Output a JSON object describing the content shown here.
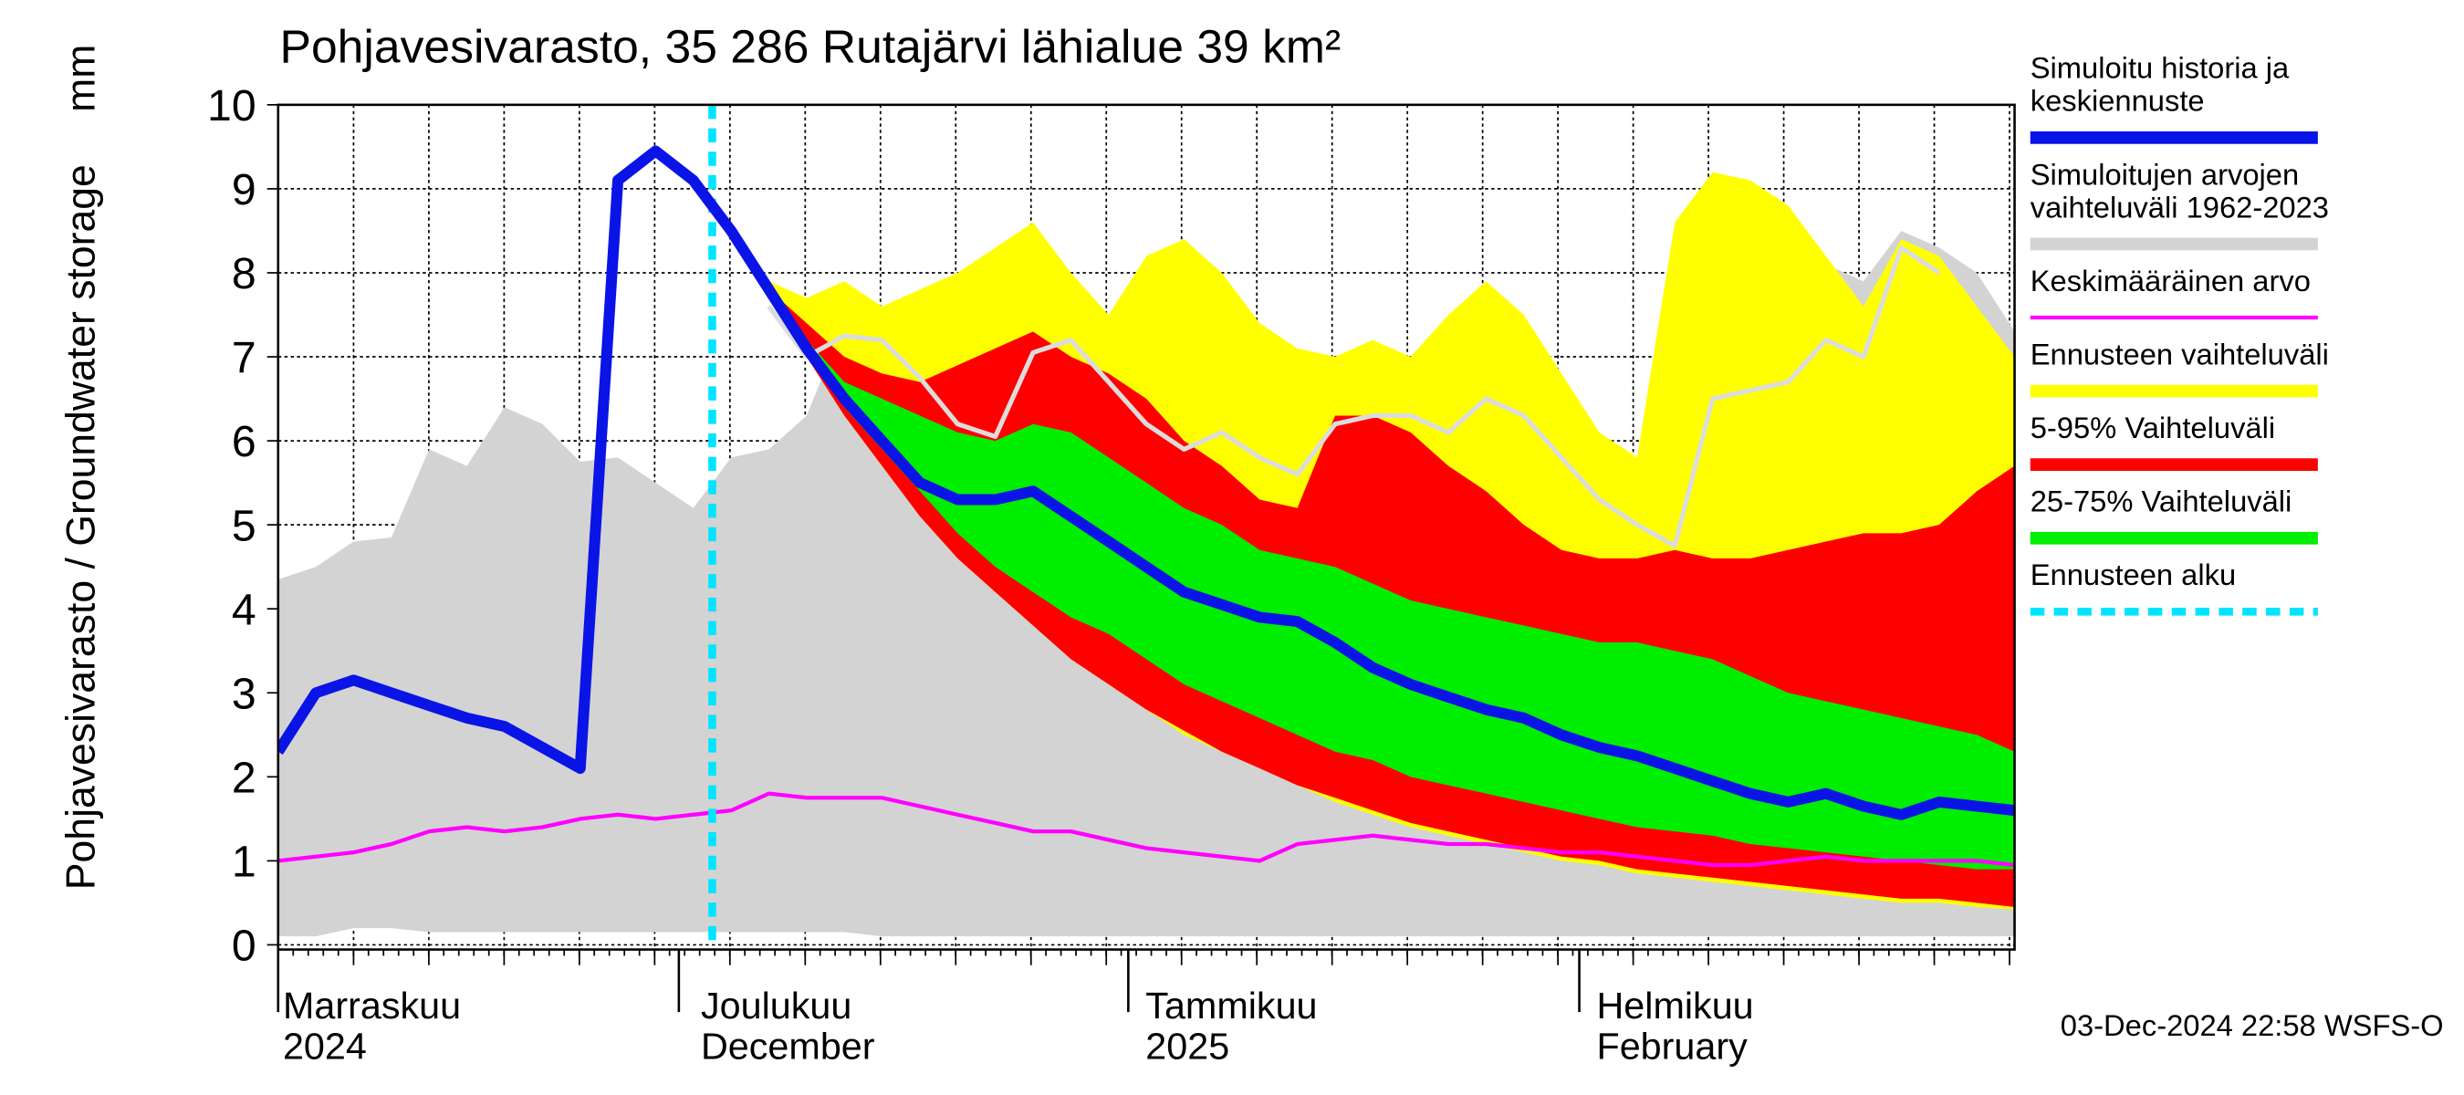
{
  "chart_data": {
    "type": "band-line",
    "title": "Pohjavesivarasto, 35 286 Rutajärvi lähialue 39 km²",
    "y_label": "Pohjavesivarasto / Groundwater storage",
    "y_unit": "mm",
    "timestamp": "03-Dec-2024 22:58 WSFS-O",
    "x_labels": [
      [
        "Marraskuu",
        "2024"
      ],
      [
        "Joulukuu",
        "December"
      ],
      [
        "Tammikuu",
        "2025"
      ],
      [
        "Helmikuu",
        "February"
      ]
    ],
    "ylim": [
      0,
      10
    ],
    "yticks": [
      0,
      1,
      2,
      3,
      4,
      5,
      6,
      7,
      8,
      9,
      10
    ],
    "grid": true,
    "forecast_start": {
      "name": "Ennusteen alku",
      "color": "#00e5ff"
    },
    "series": [
      {
        "name": [
          "Simuloitu historia ja",
          "keskiennuste"
        ],
        "color": "#0a14e6",
        "values": [
          2.3,
          3.0,
          3.15,
          3.0,
          2.85,
          2.7,
          2.6,
          2.35,
          2.1,
          9.1,
          9.45,
          9.1,
          8.5,
          7.8,
          7.1,
          6.5,
          6.0,
          5.5,
          5.3,
          5.3,
          5.4,
          5.1,
          4.8,
          4.5,
          4.2,
          4.05,
          3.9,
          3.85,
          3.6,
          3.3,
          3.1,
          2.95,
          2.8,
          2.7,
          2.5,
          2.35,
          2.25,
          2.1,
          1.95,
          1.8,
          1.7,
          1.8,
          1.65,
          1.55,
          1.7,
          1.65,
          1.6
        ]
      },
      {
        "name": [
          "Simuloitujen arvojen",
          "vaihteluväli 1962-2023"
        ],
        "color": "#d3d3d3",
        "upper": [
          4.35,
          4.5,
          4.8,
          4.85,
          5.9,
          5.7,
          6.4,
          6.2,
          5.75,
          5.8,
          5.5,
          5.2,
          5.8,
          5.9,
          6.3,
          7.4,
          7.4,
          7.6,
          7.9,
          8.2,
          8.5,
          7.9,
          7.4,
          8.1,
          8.3,
          7.9,
          7.3,
          7.0,
          6.9,
          7.1,
          6.9,
          7.4,
          7.8,
          7.4,
          6.7,
          6.0,
          5.7,
          8.5,
          9.1,
          9.0,
          8.7,
          8.1,
          7.9,
          8.5,
          8.3,
          8.0,
          7.3
        ],
        "lower": [
          0.1,
          0.1,
          0.2,
          0.2,
          0.15,
          0.15,
          0.15,
          0.15,
          0.15,
          0.15,
          0.15,
          0.15,
          0.15,
          0.15,
          0.15,
          0.15,
          0.1,
          0.1,
          0.1,
          0.1,
          0.1,
          0.1,
          0.1,
          0.1,
          0.1,
          0.1,
          0.1,
          0.1,
          0.1,
          0.1,
          0.1,
          0.1,
          0.1,
          0.1,
          0.1,
          0.1,
          0.1,
          0.1,
          0.1,
          0.1,
          0.1,
          0.1,
          0.1,
          0.1,
          0.1,
          0.1,
          0.1
        ]
      },
      {
        "name": [
          "Keskimääräinen arvo"
        ],
        "color": "#ff00ff",
        "values": [
          1.0,
          1.05,
          1.1,
          1.2,
          1.35,
          1.4,
          1.35,
          1.4,
          1.5,
          1.55,
          1.5,
          1.55,
          1.6,
          1.8,
          1.75,
          1.75,
          1.75,
          1.65,
          1.55,
          1.45,
          1.35,
          1.35,
          1.25,
          1.15,
          1.1,
          1.05,
          1.0,
          1.2,
          1.25,
          1.3,
          1.25,
          1.2,
          1.2,
          1.15,
          1.1,
          1.1,
          1.05,
          1.0,
          0.95,
          0.95,
          1.0,
          1.05,
          1.0,
          1.0,
          1.0,
          1.0,
          0.95
        ]
      },
      {
        "name": [
          "Ennusteen vaihteluväli"
        ],
        "color": "#ffff00",
        "upper": [
          null,
          null,
          null,
          null,
          null,
          null,
          null,
          null,
          null,
          null,
          null,
          null,
          8.5,
          7.9,
          7.7,
          7.9,
          7.6,
          7.8,
          8.0,
          8.3,
          8.6,
          8.0,
          7.5,
          8.2,
          8.4,
          8.0,
          7.4,
          7.1,
          7.0,
          7.2,
          7.0,
          7.5,
          7.9,
          7.5,
          6.8,
          6.1,
          5.8,
          8.6,
          9.2,
          9.1,
          8.8,
          8.2,
          7.6,
          8.4,
          8.2,
          7.6,
          7.0
        ],
        "lower": [
          null,
          null,
          null,
          null,
          null,
          null,
          null,
          null,
          null,
          null,
          null,
          null,
          8.5,
          7.7,
          7.0,
          6.3,
          5.7,
          5.1,
          4.6,
          4.2,
          3.8,
          3.4,
          3.1,
          2.8,
          2.5,
          2.3,
          2.1,
          1.9,
          1.7,
          1.55,
          1.4,
          1.3,
          1.2,
          1.1,
          1.0,
          0.95,
          0.85,
          0.8,
          0.75,
          0.7,
          0.65,
          0.6,
          0.55,
          0.5,
          0.5,
          0.45,
          0.42
        ]
      },
      {
        "name": [
          "5-95% Vaihteluväli"
        ],
        "color": "#ff0000",
        "upper": [
          null,
          null,
          null,
          null,
          null,
          null,
          null,
          null,
          null,
          null,
          null,
          null,
          8.5,
          7.8,
          7.4,
          7.0,
          6.8,
          6.7,
          6.9,
          7.1,
          7.3,
          7.0,
          6.8,
          6.5,
          6.0,
          5.7,
          5.3,
          5.2,
          6.3,
          6.3,
          6.1,
          5.7,
          5.4,
          5.0,
          4.7,
          4.6,
          4.6,
          4.7,
          4.6,
          4.6,
          4.7,
          4.8,
          4.9,
          4.9,
          5.0,
          5.4,
          5.7
        ],
        "lower": [
          null,
          null,
          null,
          null,
          null,
          null,
          null,
          null,
          null,
          null,
          null,
          null,
          8.5,
          7.7,
          7.0,
          6.3,
          5.7,
          5.1,
          4.6,
          4.2,
          3.8,
          3.4,
          3.1,
          2.8,
          2.55,
          2.3,
          2.1,
          1.9,
          1.75,
          1.6,
          1.45,
          1.35,
          1.25,
          1.15,
          1.05,
          1.0,
          0.9,
          0.85,
          0.8,
          0.75,
          0.7,
          0.65,
          0.6,
          0.55,
          0.55,
          0.5,
          0.45
        ]
      },
      {
        "name": [
          "25-75% Vaihteluväli"
        ],
        "color": "#00ee00",
        "upper": [
          null,
          null,
          null,
          null,
          null,
          null,
          null,
          null,
          null,
          null,
          null,
          null,
          8.5,
          7.8,
          7.2,
          6.7,
          6.5,
          6.3,
          6.1,
          6.0,
          6.2,
          6.1,
          5.8,
          5.5,
          5.2,
          5.0,
          4.7,
          4.6,
          4.5,
          4.3,
          4.1,
          4.0,
          3.9,
          3.8,
          3.7,
          3.6,
          3.6,
          3.5,
          3.4,
          3.2,
          3.0,
          2.9,
          2.8,
          2.7,
          2.6,
          2.5,
          2.3
        ],
        "lower": [
          null,
          null,
          null,
          null,
          null,
          null,
          null,
          null,
          null,
          null,
          null,
          null,
          8.5,
          7.7,
          7.0,
          6.4,
          5.9,
          5.4,
          4.9,
          4.5,
          4.2,
          3.9,
          3.7,
          3.4,
          3.1,
          2.9,
          2.7,
          2.5,
          2.3,
          2.2,
          2.0,
          1.9,
          1.8,
          1.7,
          1.6,
          1.5,
          1.4,
          1.35,
          1.3,
          1.2,
          1.15,
          1.1,
          1.05,
          1.0,
          0.95,
          0.9,
          0.9
        ]
      },
      {
        "color": "#dcdcdc",
        "values": [
          null,
          null,
          null,
          null,
          null,
          null,
          null,
          null,
          null,
          null,
          null,
          null,
          null,
          7.6,
          7.0,
          7.25,
          7.2,
          6.75,
          6.2,
          6.05,
          7.05,
          7.2,
          6.7,
          6.2,
          5.9,
          6.1,
          5.8,
          5.6,
          6.2,
          6.3,
          6.3,
          6.1,
          6.5,
          6.3,
          5.8,
          5.3,
          5.0,
          4.75,
          6.5,
          6.6,
          6.7,
          7.2,
          7.0,
          8.3,
          8.0,
          null,
          null
        ]
      }
    ]
  }
}
